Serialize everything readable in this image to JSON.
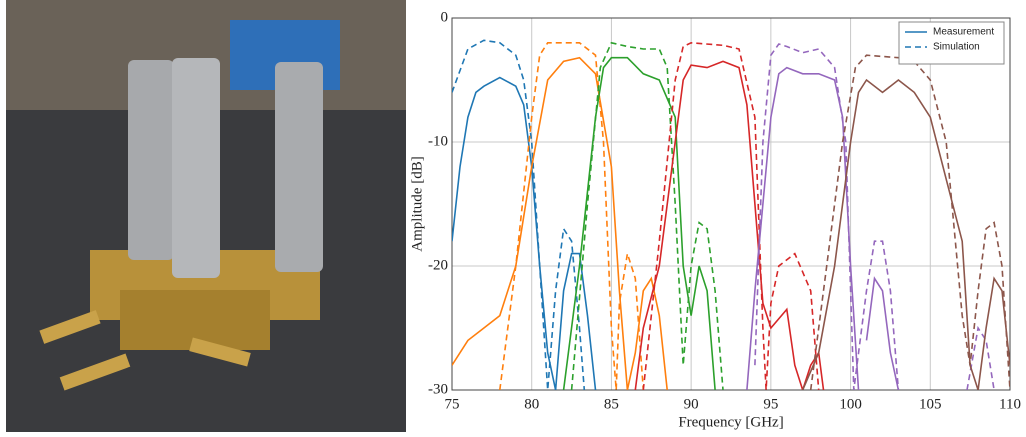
{
  "chart_data": {
    "type": "line",
    "xlabel": "Frequency [GHz]",
    "ylabel": "Amplitude [dB]",
    "xlim": [
      75,
      110
    ],
    "xticks": [
      75,
      80,
      85,
      90,
      95,
      100,
      105,
      110
    ],
    "ylim": [
      -30,
      0
    ],
    "yticks": [
      0,
      -10,
      -20,
      -30
    ],
    "grid": true,
    "legend_position": "upper right",
    "legend": [
      {
        "name": "Measurement",
        "style": "solid",
        "color": "#1f77b4"
      },
      {
        "name": "Simulation",
        "style": "dashed",
        "color": "#1f77b4"
      }
    ],
    "series": [
      {
        "style": "solid",
        "color": "#1f77b4",
        "x": [
          75,
          75.5,
          76,
          76.5,
          77,
          78,
          79,
          79.5,
          80,
          80.5,
          81,
          81.5,
          82,
          82.5,
          83,
          83.5,
          84
        ],
        "values": [
          -18,
          -12,
          -8,
          -6,
          -5.5,
          -4.8,
          -5.5,
          -7,
          -12,
          -20,
          -27,
          -30,
          -22,
          -19,
          -19,
          -24,
          -30
        ]
      },
      {
        "style": "dashed",
        "color": "#1f77b4",
        "x": [
          75,
          76,
          77,
          78,
          79,
          79.5,
          80,
          80.5,
          81,
          81.5,
          82,
          82.5,
          83,
          83.3
        ],
        "values": [
          -6,
          -2.5,
          -1.8,
          -2,
          -3,
          -5,
          -10,
          -20,
          -30,
          -22,
          -17,
          -18,
          -25,
          -30
        ]
      },
      {
        "style": "solid",
        "color": "#ff7f0e",
        "x": [
          75,
          76,
          77,
          78,
          79,
          80,
          81,
          82,
          83,
          84,
          85,
          85.5,
          86,
          86.5,
          87,
          87.5,
          88,
          88.5
        ],
        "values": [
          -28,
          -26,
          -25,
          -24,
          -20,
          -12,
          -5,
          -3.5,
          -3.2,
          -4.5,
          -12,
          -22,
          -30,
          -27,
          -22,
          -21,
          -24,
          -30
        ]
      },
      {
        "style": "dashed",
        "color": "#ff7f0e",
        "x": [
          78,
          79,
          80,
          80.5,
          81,
          83,
          84,
          84.5,
          85,
          85.3,
          85.5,
          86,
          86.5,
          87
        ],
        "values": [
          -30,
          -20,
          -8,
          -3,
          -2,
          -2,
          -3,
          -10,
          -25,
          -30,
          -23,
          -19,
          -21,
          -30
        ]
      },
      {
        "style": "solid",
        "color": "#2ca02c",
        "x": [
          82,
          83,
          84,
          84.5,
          85,
          86,
          87,
          88,
          89,
          89.5,
          90,
          90.5,
          91,
          91.5
        ],
        "values": [
          -30,
          -20,
          -8,
          -4,
          -3.2,
          -3.2,
          -4.5,
          -5,
          -8,
          -20,
          -24,
          -20,
          -22,
          -30
        ]
      },
      {
        "style": "dashed",
        "color": "#2ca02c",
        "x": [
          82.5,
          83.5,
          84.3,
          85,
          86,
          87,
          88,
          88.5,
          89,
          89.5,
          90,
          90.5,
          91,
          91.5,
          92
        ],
        "values": [
          -30,
          -15,
          -4,
          -2,
          -2.3,
          -2.5,
          -2.5,
          -4,
          -15,
          -28,
          -20,
          -16.5,
          -17,
          -22,
          -30
        ]
      },
      {
        "style": "solid",
        "color": "#d62728",
        "x": [
          86.5,
          87,
          88,
          89,
          89.5,
          90,
          91,
          92,
          93,
          93.5,
          94,
          94.5,
          95,
          96,
          96.5,
          97,
          97.5,
          98,
          98.3
        ],
        "values": [
          -30,
          -25,
          -20,
          -10,
          -5,
          -3.8,
          -4,
          -3.5,
          -4,
          -7,
          -15,
          -23,
          -25,
          -23.5,
          -28,
          -30,
          -28,
          -27,
          -30
        ]
      },
      {
        "style": "dashed",
        "color": "#d62728",
        "x": [
          87,
          88,
          89,
          89.5,
          90,
          92,
          93,
          94,
          94.5,
          94.7,
          95,
          95.5,
          96.5,
          97.5,
          98
        ],
        "values": [
          -30,
          -18,
          -5,
          -2.3,
          -2,
          -2.2,
          -2.5,
          -8,
          -25,
          -30,
          -23,
          -20,
          -19,
          -22,
          -30
        ]
      },
      {
        "style": "solid",
        "color": "#9467bd",
        "x": [
          93.5,
          94,
          95,
          95.5,
          96,
          97,
          98,
          99,
          99.5,
          100,
          100.5,
          100.8,
          101,
          101.5,
          102,
          102.5,
          103
        ],
        "values": [
          -30,
          -22,
          -8,
          -4.5,
          -4,
          -4.5,
          -4.5,
          -5,
          -8,
          -20,
          -30,
          null,
          -26,
          -21,
          -22,
          -27,
          -30
        ]
      },
      {
        "style": "dashed",
        "color": "#9467bd",
        "x": [
          94,
          94.5,
          95,
          95.5,
          96,
          97,
          98,
          99,
          99.7,
          100.2,
          101,
          101.5,
          102,
          102.5,
          103,
          105,
          107.3,
          108,
          108.5,
          109
        ],
        "values": [
          -28,
          -10,
          -3,
          -2.1,
          -2.3,
          -2.8,
          -2.5,
          -4,
          -10,
          -30,
          -22,
          -18,
          -18,
          -22,
          -30,
          null,
          -30,
          -25,
          -26,
          -30
        ]
      },
      {
        "style": "solid",
        "color": "#8c564b",
        "x": [
          97,
          98,
          99,
          99.5,
          100,
          100.5,
          101,
          102,
          103,
          104,
          105,
          106,
          107,
          107.5,
          108,
          108.5,
          109,
          109.5,
          110
        ],
        "values": [
          -30,
          -27,
          -20,
          -15,
          -10,
          -6,
          -5,
          -6,
          -5,
          -6,
          -8,
          -13,
          -18,
          -28,
          -30,
          -25,
          -21,
          -22,
          -28
        ]
      },
      {
        "style": "dashed",
        "color": "#8c564b",
        "x": [
          97.5,
          98.5,
          99.5,
          100.3,
          101,
          103,
          104,
          105,
          106,
          107,
          107.5,
          108,
          108.5,
          109,
          109.5,
          110
        ],
        "values": [
          -30,
          -20,
          -10,
          -4,
          -3,
          -3.2,
          -3.5,
          -5,
          -10,
          -24,
          -28,
          -22,
          -17,
          -16.5,
          -20,
          -30
        ]
      }
    ]
  }
}
